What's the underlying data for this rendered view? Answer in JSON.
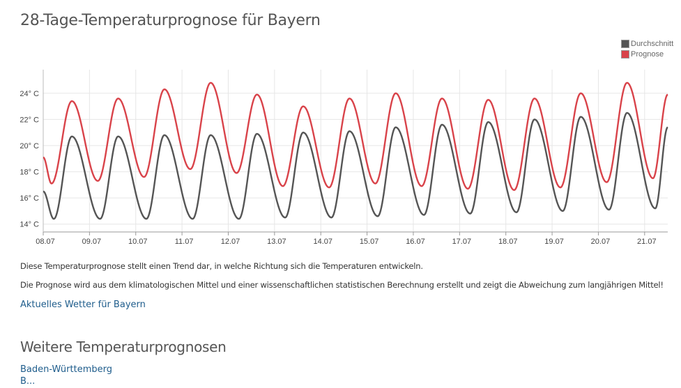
{
  "page": {
    "title": "28-Tage-Temperaturprognose für Bayern",
    "note_1": "Diese Temperaturprognose stellt einen Trend dar, in welche Richtung sich die Temperaturen entwickeln.",
    "note_2": "Die Prognose wird aus dem klimatologischen Mittel und einer wissenschaftlichen statistischen Berechnung erstellt und zeigt die Abweichung zum langjährigen Mittel!",
    "current_weather_link": "Aktuelles Wetter für Bayern",
    "more_title": "Weitere Temperaturprognosen",
    "regions": [
      "Baden-Württemberg",
      "B..."
    ]
  },
  "chart_data": {
    "type": "line",
    "title": "",
    "xlabel": "",
    "ylabel": "",
    "x_tick_labels": [
      "08.07",
      "09.07",
      "10.07",
      "11.07",
      "12.07",
      "13.07",
      "14.07",
      "15.07",
      "16.07",
      "17.07",
      "18.07",
      "19.07",
      "20.07",
      "21.07"
    ],
    "y_tick_labels": [
      "14° C",
      "16° C",
      "18° C",
      "20° C",
      "22° C",
      "24° C"
    ],
    "y_ticks": [
      14,
      16,
      18,
      20,
      22,
      24
    ],
    "ylim": [
      13.4,
      25.8
    ],
    "xlim": [
      0,
      13.5
    ],
    "grid": true,
    "legend_position": "top-right",
    "series": [
      {
        "name": "Durchschnitt",
        "color": "#555555",
        "x": [
          0,
          0.23,
          0.62,
          1.23,
          1.62,
          2.23,
          2.62,
          3.23,
          3.62,
          4.23,
          4.62,
          5.23,
          5.62,
          6.23,
          6.62,
          7.23,
          7.62,
          8.23,
          8.62,
          9.23,
          9.62,
          10.23,
          10.62,
          11.23,
          11.62,
          12.23,
          12.62,
          13.23,
          13.5
        ],
        "values": [
          16.5,
          14.4,
          20.7,
          14.4,
          20.7,
          14.4,
          20.8,
          14.4,
          20.8,
          14.4,
          20.9,
          14.5,
          21.0,
          14.5,
          21.1,
          14.6,
          21.4,
          14.7,
          21.6,
          14.8,
          21.8,
          14.9,
          22.0,
          15.0,
          22.2,
          15.1,
          22.5,
          15.2,
          21.4
        ]
      },
      {
        "name": "Prognose",
        "color": "#d9434a",
        "x": [
          0,
          0.18,
          0.62,
          1.18,
          1.62,
          2.18,
          2.62,
          3.18,
          3.62,
          4.18,
          4.62,
          5.18,
          5.62,
          6.18,
          6.62,
          7.18,
          7.62,
          8.18,
          8.62,
          9.18,
          9.62,
          10.18,
          10.62,
          11.18,
          11.62,
          12.18,
          12.62,
          13.18,
          13.5
        ],
        "values": [
          19.1,
          17.1,
          23.4,
          17.3,
          23.6,
          17.6,
          24.3,
          18.2,
          24.8,
          17.9,
          23.9,
          16.9,
          23.0,
          16.8,
          23.6,
          17.1,
          24.0,
          16.9,
          23.6,
          16.7,
          23.5,
          16.6,
          23.6,
          16.8,
          24.0,
          17.2,
          24.8,
          17.5,
          23.9
        ]
      }
    ]
  }
}
